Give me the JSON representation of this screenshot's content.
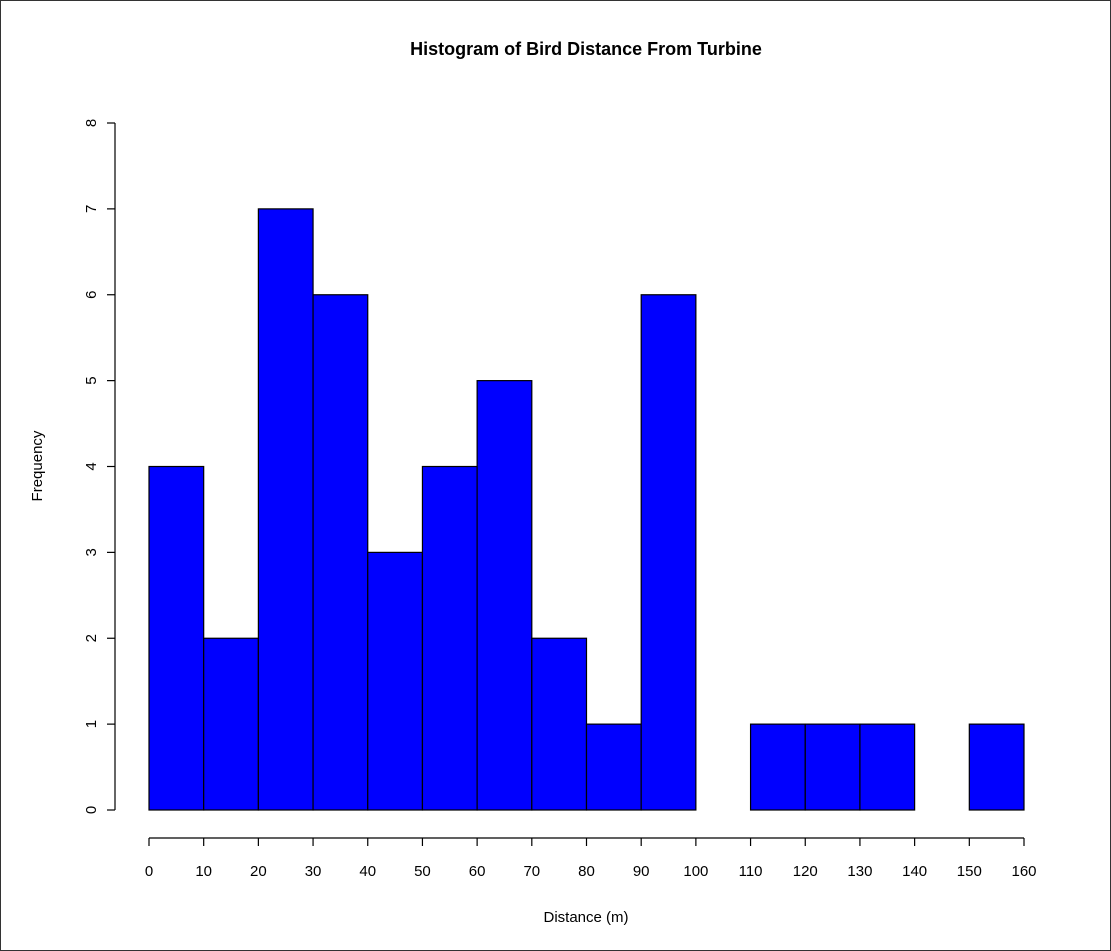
{
  "chart_data": {
    "type": "histogram",
    "title": "Histogram of Bird Distance From Turbine",
    "x_label": "Distance (m)",
    "y_label": "Frequency",
    "bins": [
      0,
      10,
      20,
      30,
      40,
      50,
      60,
      70,
      80,
      90,
      100,
      110,
      120,
      130,
      140,
      150,
      160
    ],
    "values": [
      4,
      2,
      7,
      6,
      3,
      4,
      5,
      2,
      1,
      6,
      0,
      1,
      1,
      1,
      0,
      1
    ],
    "color": "#0000ff",
    "xlim": [
      0,
      160
    ],
    "xticks": [
      0,
      10,
      20,
      30,
      40,
      50,
      60,
      70,
      80,
      90,
      100,
      110,
      120,
      130,
      140,
      150,
      160
    ],
    "ylim": [
      0,
      8
    ],
    "yticks": [
      0,
      1,
      2,
      3,
      4,
      5,
      6,
      7,
      8
    ]
  }
}
